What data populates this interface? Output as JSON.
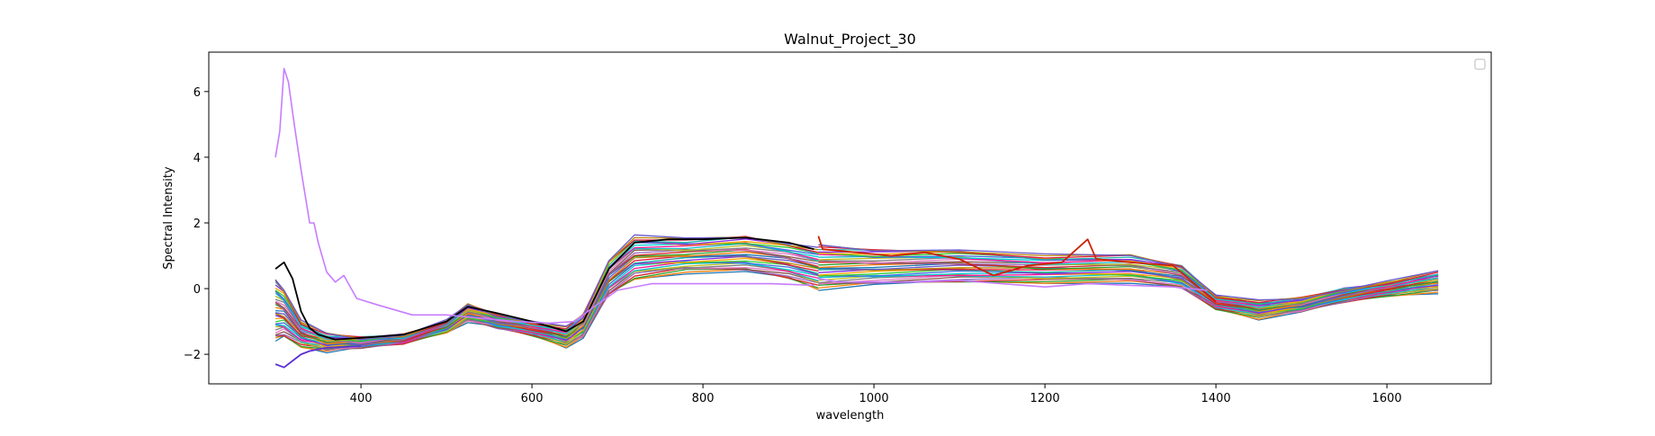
{
  "chart_data": {
    "type": "line",
    "title": "Walnut_Project_30",
    "xlabel": "wavelength",
    "ylabel": "Spectral Intensity",
    "xlim": [
      222,
      1722
    ],
    "ylim": [
      -2.9,
      7.2
    ],
    "xticks": [
      400,
      600,
      800,
      1000,
      1200,
      1400,
      1600
    ],
    "yticks": [
      -2,
      0,
      2,
      4,
      6
    ],
    "grid": false,
    "legend": {
      "placement": "top-right",
      "entries": []
    },
    "outlier_series": {
      "color": "#c77dff",
      "x": [
        300,
        305,
        310,
        315,
        322,
        330,
        340,
        345,
        350,
        360,
        370,
        380,
        395,
        420,
        460,
        500,
        540,
        580,
        620,
        650,
        670,
        700,
        740,
        800,
        880,
        930
      ],
      "y": [
        4.0,
        4.8,
        6.7,
        6.3,
        5.0,
        3.6,
        2.0,
        2.0,
        1.4,
        0.5,
        0.2,
        0.4,
        -0.3,
        -0.5,
        -0.8,
        -0.8,
        -0.9,
        -1.0,
        -1.05,
        -1.0,
        -0.6,
        -0.05,
        0.15,
        0.15,
        0.15,
        0.1
      ],
      "x2": [
        935,
        960,
        1000,
        1050,
        1100,
        1150,
        1200,
        1250,
        1300,
        1350,
        1390
      ],
      "y2": [
        0.3,
        0.2,
        0.2,
        0.2,
        0.25,
        0.15,
        0.05,
        0.15,
        0.1,
        0.05,
        -0.05
      ]
    },
    "series_envelope": {
      "count": 40,
      "x": [
        300,
        310,
        330,
        360,
        400,
        450,
        500,
        525,
        560,
        600,
        640,
        660,
        690,
        720,
        780,
        850,
        900,
        935
      ],
      "low": [
        -1.6,
        -1.5,
        -1.75,
        -1.9,
        -1.8,
        -1.65,
        -1.3,
        -1.0,
        -1.2,
        -1.4,
        -1.75,
        -1.5,
        -0.2,
        0.3,
        0.5,
        0.5,
        0.3,
        0.0
      ],
      "high": [
        0.3,
        0.0,
        -1.0,
        -1.4,
        -1.5,
        -1.4,
        -1.0,
        -0.5,
        -0.8,
        -1.0,
        -1.2,
        -0.8,
        0.9,
        1.6,
        1.5,
        1.6,
        1.4,
        1.2
      ],
      "x2": [
        935,
        1000,
        1100,
        1200,
        1300,
        1360,
        1400,
        1450,
        1500,
        1550,
        1600,
        1660
      ],
      "low2": [
        0.0,
        0.1,
        0.2,
        0.2,
        0.2,
        0.0,
        -0.6,
        -0.9,
        -0.7,
        -0.4,
        -0.2,
        -0.1
      ],
      "high2": [
        1.3,
        1.2,
        1.2,
        1.0,
        1.0,
        0.7,
        -0.2,
        -0.4,
        -0.3,
        0.0,
        0.2,
        0.5
      ]
    },
    "highlight_series": [
      {
        "color": "#000000",
        "x": [
          300,
          310,
          320,
          330,
          340,
          350,
          370,
          400,
          450,
          500,
          525,
          560,
          600,
          640,
          660,
          690,
          720,
          760,
          800,
          850,
          900,
          930
        ],
        "y": [
          0.6,
          0.8,
          0.3,
          -0.7,
          -1.2,
          -1.4,
          -1.55,
          -1.5,
          -1.4,
          -1.0,
          -0.55,
          -0.75,
          -1.0,
          -1.3,
          -1.0,
          0.6,
          1.4,
          1.5,
          1.5,
          1.55,
          1.4,
          1.2
        ]
      },
      {
        "color": "#5b2fd6",
        "x": [
          300,
          310,
          320,
          330,
          340,
          360,
          400
        ],
        "y": [
          -2.3,
          -2.4,
          -2.2,
          -2.0,
          -1.9,
          -1.8,
          -1.75
        ]
      },
      {
        "color": "#cc2200",
        "x": [
          935,
          940,
          980,
          1020,
          1060,
          1100,
          1140,
          1180,
          1220,
          1250,
          1260,
          1300,
          1350,
          1400
        ],
        "y": [
          1.6,
          1.2,
          1.1,
          1.0,
          1.1,
          0.9,
          0.4,
          0.7,
          0.8,
          1.5,
          0.9,
          0.8,
          0.7,
          -0.4
        ]
      }
    ]
  }
}
